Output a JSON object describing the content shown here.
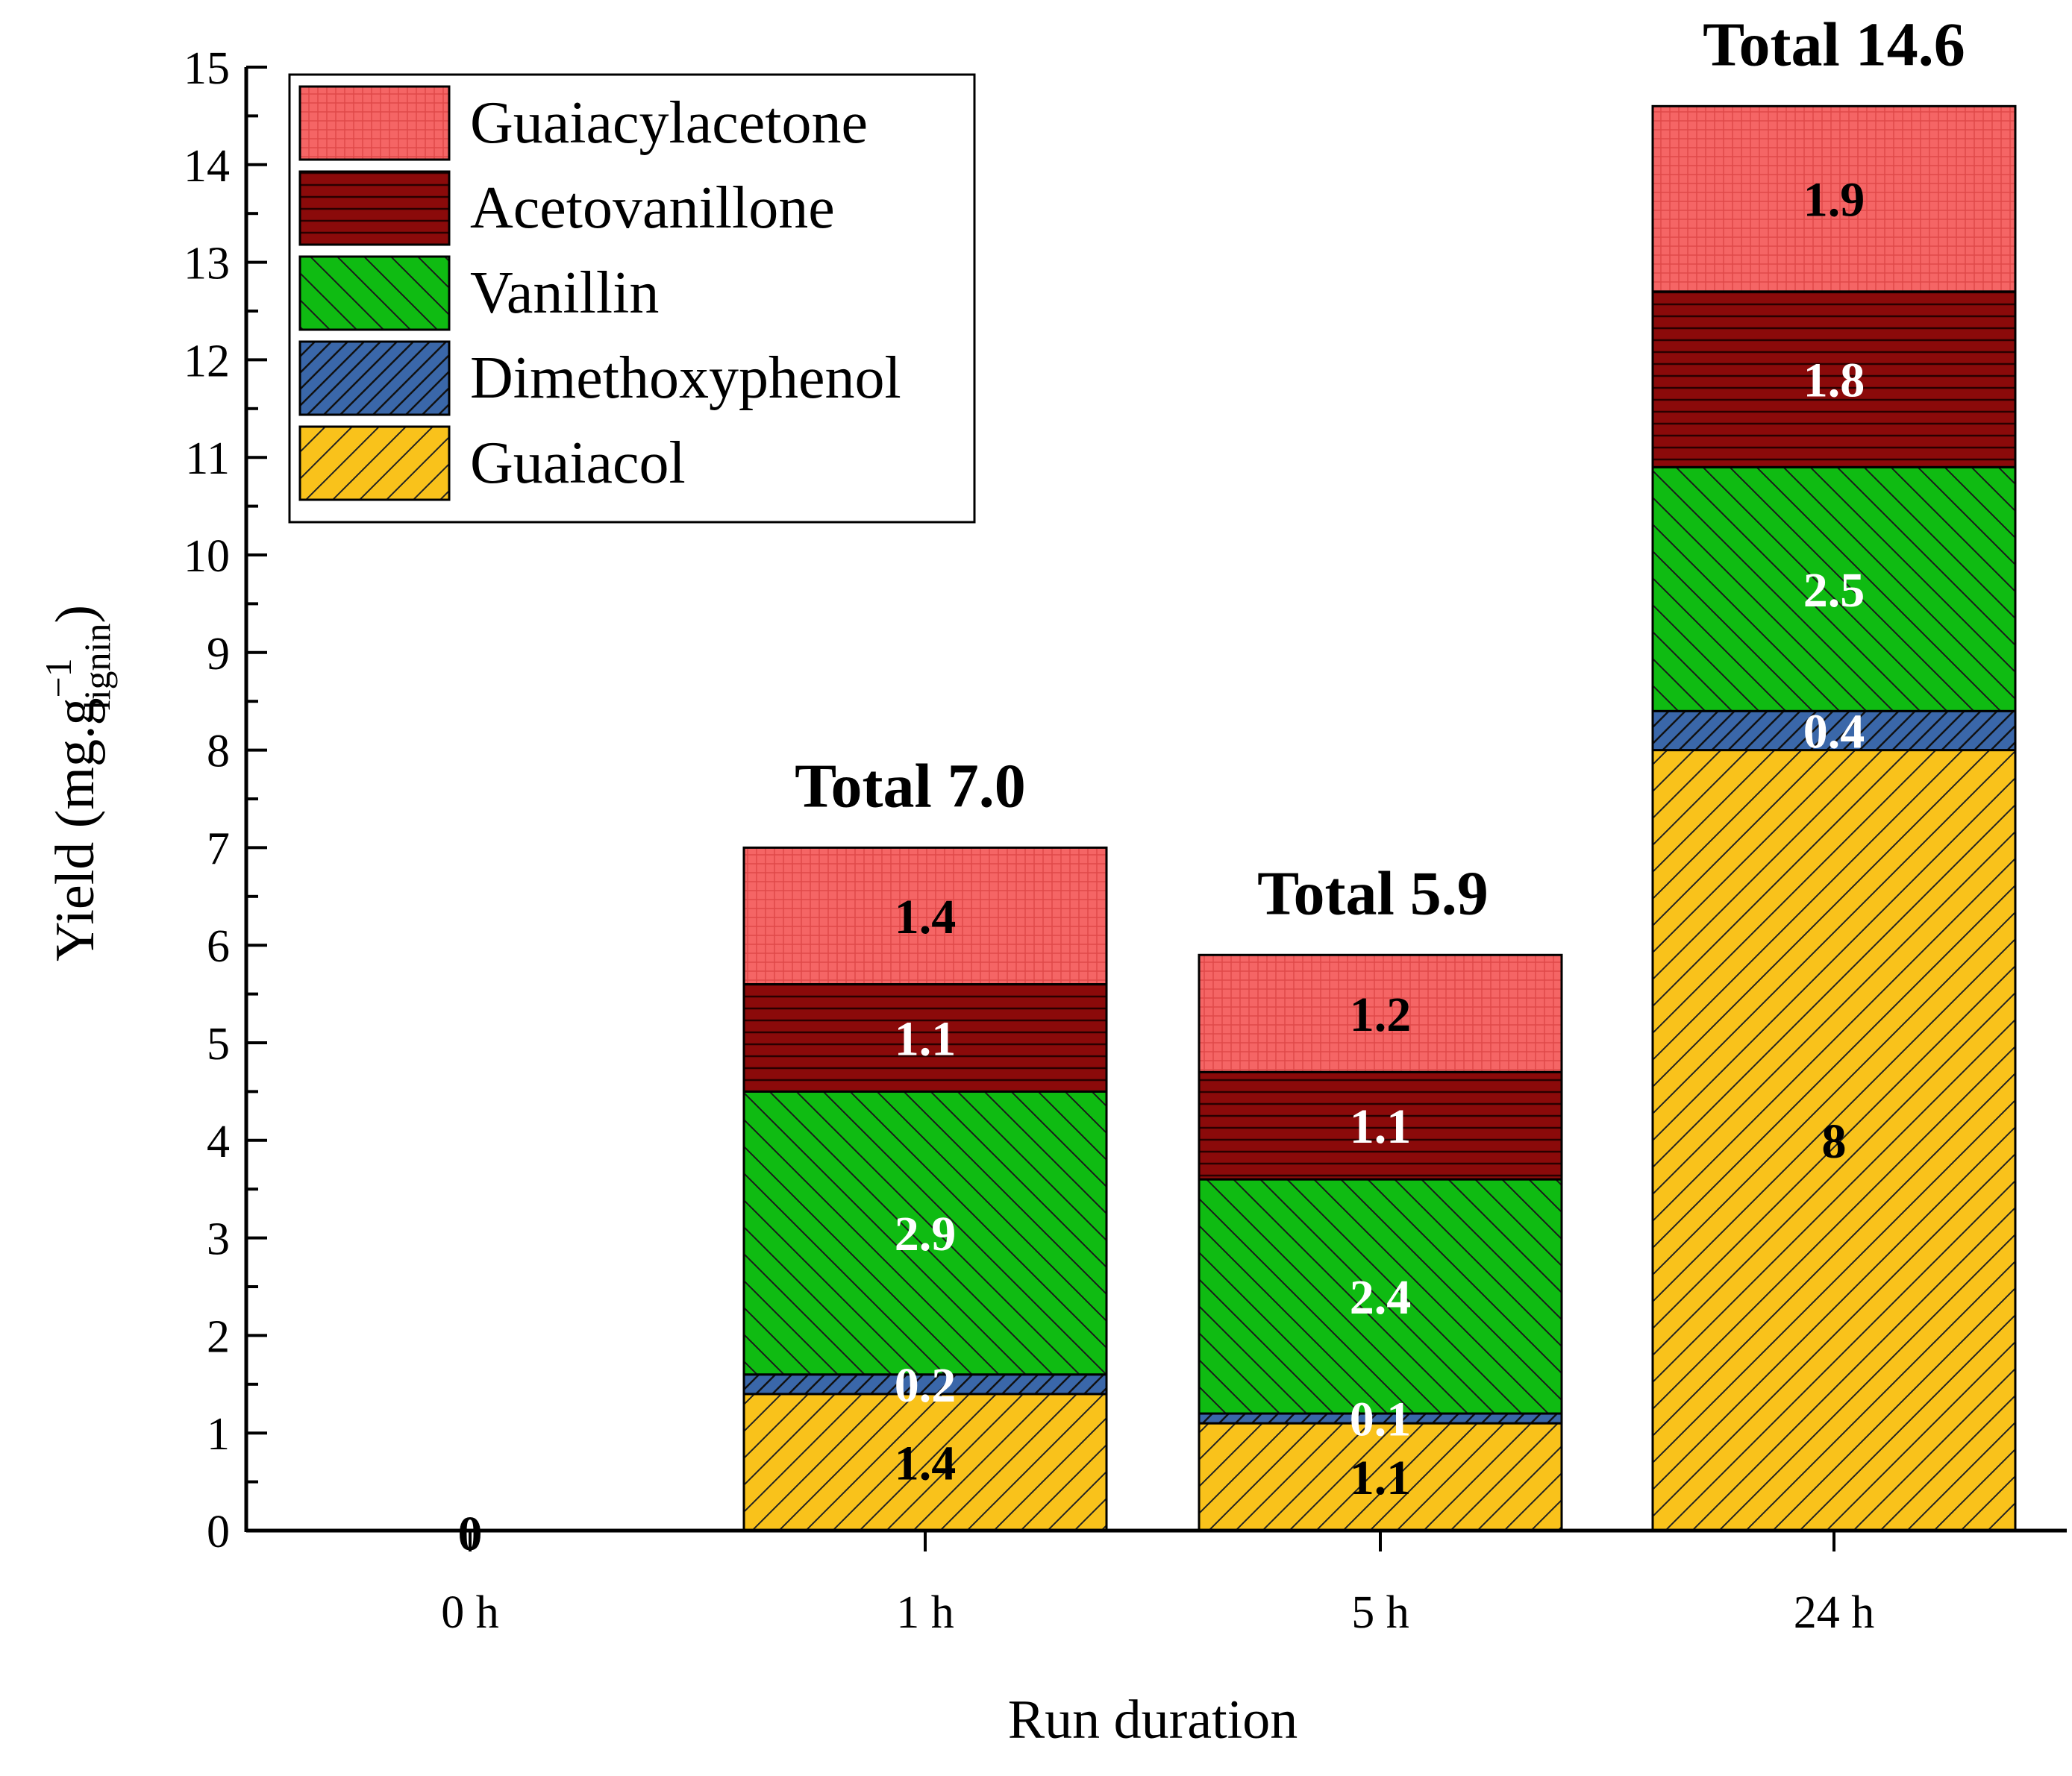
{
  "chart_data": {
    "type": "bar",
    "stacked": true,
    "categories": [
      "0 h",
      "1 h",
      "5 h",
      "24 h"
    ],
    "xlabel": "Run duration",
    "ylabel": "Yield (mg.g",
    "ylabel_sup": "−1",
    "ylabel_sub": "lignin",
    "ylabel_close": ")",
    "ylim": [
      0,
      15
    ],
    "yticks": [
      0,
      1,
      2,
      3,
      4,
      5,
      6,
      7,
      8,
      9,
      10,
      11,
      12,
      13,
      14,
      15
    ],
    "grid": false,
    "legend_position": "top-left",
    "zero_label": "0",
    "series": [
      {
        "name": "Guaiacol",
        "color": "#f9c21b",
        "pattern": "fwd-hatch",
        "label_color": "#000000",
        "values": [
          0,
          1.4,
          1.1,
          8
        ],
        "labels": [
          "",
          "1.4",
          "1.1",
          "8"
        ]
      },
      {
        "name": "Dimethoxyphenol",
        "color": "#3a67a9",
        "pattern": "fwd-hatch-dense",
        "label_color": "#ffffff",
        "values": [
          0,
          0.2,
          0.1,
          0.4
        ],
        "labels": [
          "",
          "0.2",
          "0.1",
          "0.4"
        ]
      },
      {
        "name": "Vanillin",
        "color": "#0fbb12",
        "pattern": "back-hatch",
        "label_color": "#ffffff",
        "values": [
          0,
          2.9,
          2.4,
          2.5
        ],
        "labels": [
          "",
          "2.9",
          "2.4",
          "2.5"
        ]
      },
      {
        "name": "Acetovanillone",
        "color": "#8b0a0a",
        "pattern": "horizontal",
        "label_color": "#ffffff",
        "values": [
          0,
          1.1,
          1.1,
          1.8
        ],
        "labels": [
          "",
          "1.1",
          "1.1",
          "1.8"
        ]
      },
      {
        "name": "Guaiacylacetone",
        "color": "#f56565",
        "pattern": "crosshatch",
        "label_color": "#000000",
        "values": [
          0,
          1.4,
          1.2,
          1.9
        ],
        "labels": [
          "",
          "1.4",
          "1.2",
          "1.9"
        ]
      }
    ],
    "totals": [
      "",
      "Total 7.0",
      "Total 5.9",
      "Total 14.6"
    ],
    "totals_values": [
      0,
      7.0,
      5.9,
      14.6
    ]
  }
}
